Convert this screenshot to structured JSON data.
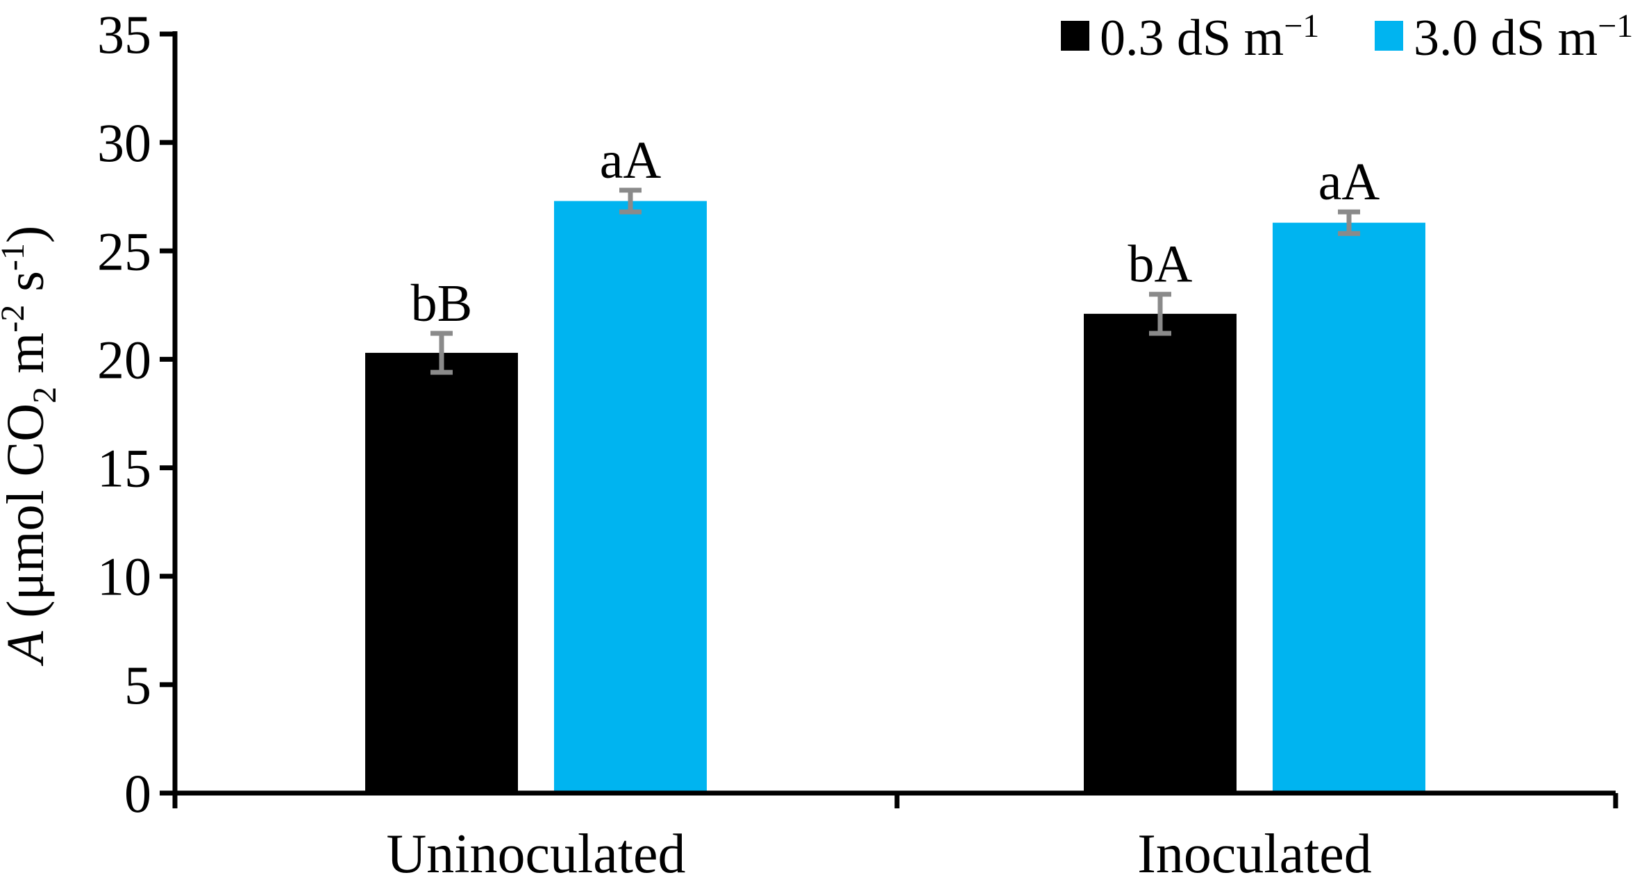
{
  "figure": {
    "kind": "grouped bar chart with error bars and significance letters",
    "background": "#ffffff"
  },
  "chart_data": {
    "type": "bar",
    "categories": [
      "Uninoculated",
      "Inoculated"
    ],
    "series": [
      {
        "name": "0.3 dS m−1",
        "legend_base": "0.3 dS m",
        "legend_sup": "−1",
        "color": "#000000",
        "values": [
          20.3,
          22.1
        ],
        "errors": [
          0.9,
          0.9
        ],
        "letters": [
          "bB",
          "bA"
        ]
      },
      {
        "name": "3.0 dS m−1",
        "legend_base": "3.0 dS m",
        "legend_sup": "−1",
        "color": "#00B4F0",
        "values": [
          27.3,
          26.3
        ],
        "errors": [
          0.5,
          0.5
        ],
        "letters": [
          "aA",
          "aA"
        ]
      }
    ],
    "title": "",
    "xlabel": "",
    "ylabel_plain": "A (μmol CO2 m-2 s-1)",
    "ylabel_parts": [
      {
        "t": "A",
        "style": "italic"
      },
      {
        "t": " (μmol CO"
      },
      {
        "t": "2",
        "pos": "sub"
      },
      {
        "t": " m"
      },
      {
        "t": "-2",
        "pos": "sup"
      },
      {
        "t": " s"
      },
      {
        "t": "-1",
        "pos": "sup"
      },
      {
        "t": ")"
      }
    ],
    "ylim": [
      0,
      35
    ],
    "yticks": [
      0,
      5,
      10,
      15,
      20,
      25,
      30,
      35
    ],
    "grid": false,
    "legend_position": "top-right",
    "error_bar_color": "#8a8a8a",
    "axis_color": "#000000",
    "letter_color": "#000000"
  }
}
